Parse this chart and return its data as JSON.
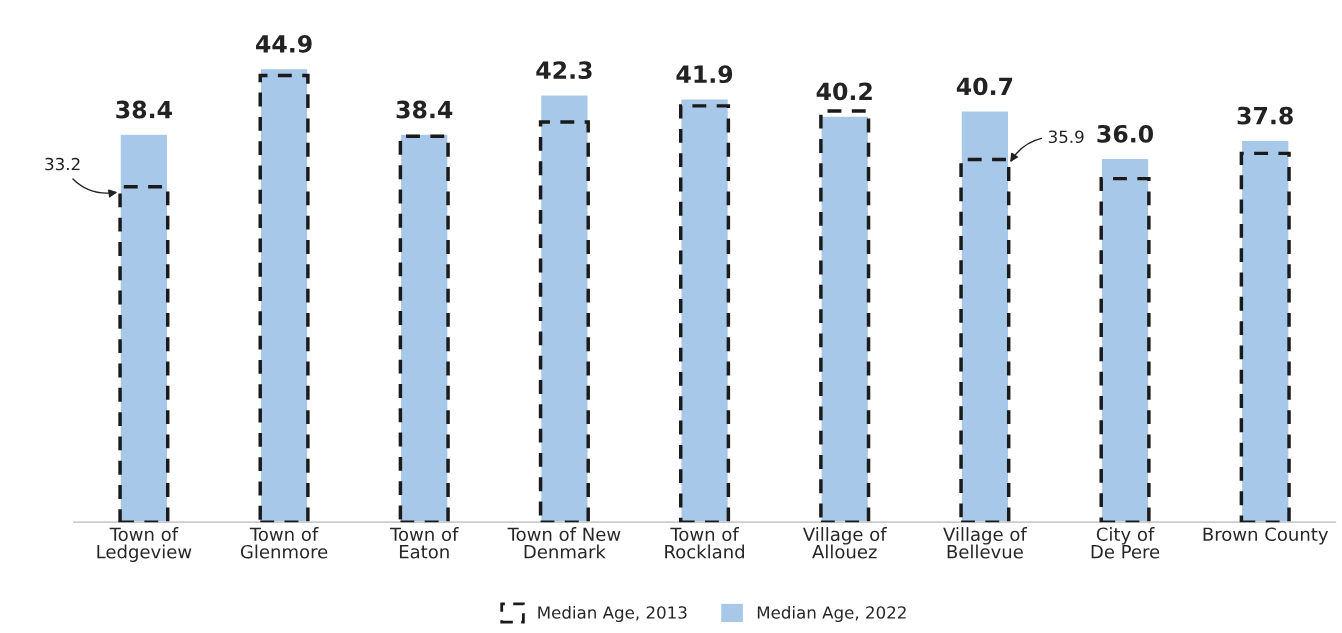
{
  "chart_data": {
    "type": "bar",
    "categories": [
      "Town of\nLedgeview",
      "Town of\nGlenmore",
      "Town of\nEaton",
      "Town of New\nDenmark",
      "Town of\nRockland",
      "Village of\nAllouez",
      "Village of\nBellevue",
      "City of\nDe Pere",
      "Brown County"
    ],
    "series": [
      {
        "name": "Median Age, 2013",
        "color": "#1a1a1a",
        "line_style": "dashed",
        "values": [
          33.2,
          44.2,
          38.2,
          39.6,
          41.2,
          40.7,
          35.9,
          34.0,
          36.5
        ],
        "value_labels": [
          "33.2",
          null,
          null,
          null,
          null,
          null,
          "35.9",
          null,
          null
        ]
      },
      {
        "name": "Median Age, 2022",
        "color": "#a7c8e9",
        "line_style": "solid",
        "values": [
          38.4,
          44.9,
          38.4,
          42.3,
          41.9,
          40.2,
          40.7,
          36.0,
          37.8
        ],
        "value_labels": [
          "38.4",
          "44.9",
          "38.4",
          "42.3",
          "41.9",
          "40.2",
          "40.7",
          "36.0",
          "37.8"
        ]
      }
    ],
    "tick_labels": "x",
    "grid": false,
    "legend": "bottom"
  }
}
